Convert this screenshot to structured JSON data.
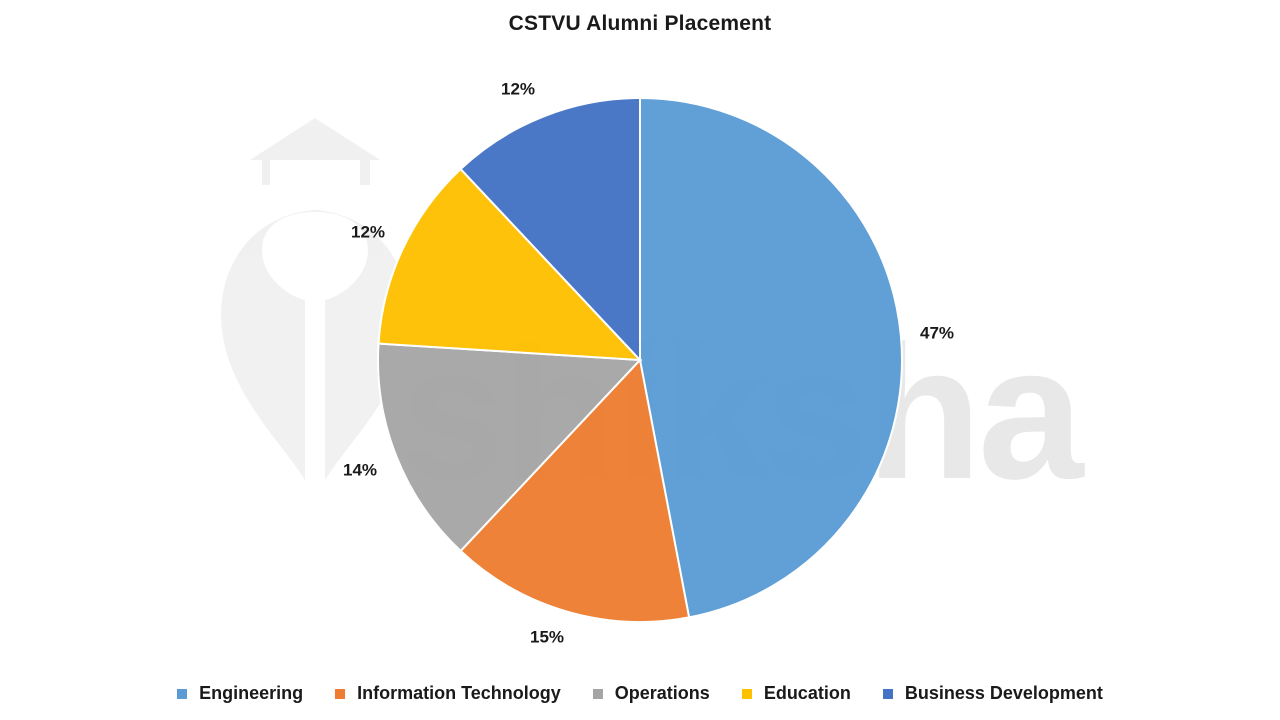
{
  "chart_data": {
    "type": "pie",
    "title": "CSTVU Alumni Placement",
    "categories": [
      "Engineering",
      "Information Technology",
      "Operations",
      "Education",
      "Business Development"
    ],
    "values": [
      47,
      15,
      14,
      12,
      12
    ],
    "labels": [
      "47%",
      "15%",
      "14%",
      "12%",
      "12%"
    ],
    "colors": [
      "#5B9BD5",
      "#ED7D31",
      "#A5A5A5",
      "#FFC000",
      "#4472C4"
    ],
    "start_angle": "12 o'clock",
    "direction": "clockwise",
    "legend_position": "bottom",
    "unit": "%"
  },
  "watermark": {
    "text": "shiksha"
  }
}
